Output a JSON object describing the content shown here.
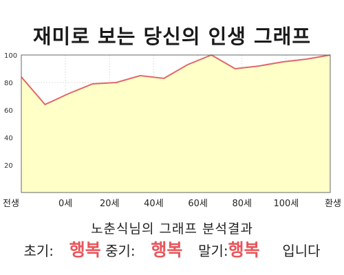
{
  "title": "재미로 보는 당신의 인생 그래프",
  "summary": "노춘식님의 그래프 분석결과",
  "result": {
    "early_label": "초기:",
    "early_value": "행복",
    "middle_label": "중기:",
    "middle_value": "행복",
    "late_label": "말기:",
    "late_value": "행복",
    "suffix": "입니다"
  },
  "colors": {
    "line": "#e06666",
    "fill": "#ffffc8",
    "highlight": "#e8555a"
  },
  "chart_data": {
    "type": "area",
    "title": "재미로 보는 당신의 인생 그래프",
    "xlabel": "",
    "ylabel": "",
    "ylim": [
      0,
      100
    ],
    "yticks": [
      20,
      40,
      60,
      80,
      100
    ],
    "xtick_labels": [
      "전생",
      "0세",
      "20세",
      "40세",
      "60세",
      "80세",
      "100세",
      "환생"
    ],
    "grid": true,
    "series": [
      {
        "values": [
          84,
          64,
          72,
          79,
          80,
          85,
          83,
          93,
          100,
          90,
          92,
          95,
          97,
          100
        ]
      }
    ]
  }
}
